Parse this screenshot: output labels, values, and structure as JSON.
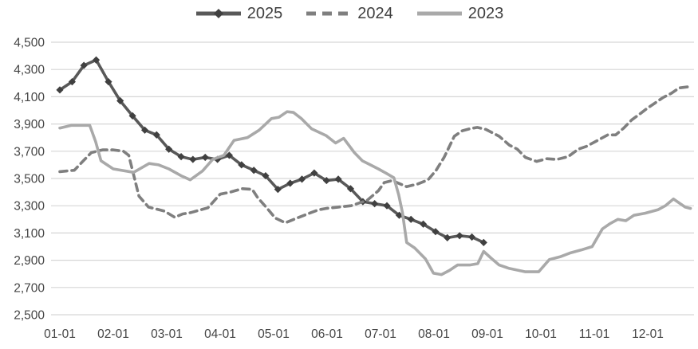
{
  "chart_data": {
    "type": "line",
    "title": "",
    "grid": true,
    "legend": {
      "position": "top",
      "entries": [
        "2025",
        "2024",
        "2023"
      ]
    },
    "x_axis": {
      "tick_labels": [
        "01-01",
        "02-01",
        "03-01",
        "04-01",
        "05-01",
        "06-01",
        "07-01",
        "08-01",
        "09-01",
        "10-01",
        "11-01",
        "12-01"
      ]
    },
    "y_axis": {
      "min": 2500,
      "max": 4500,
      "tick_values": [
        2500,
        2700,
        2900,
        3100,
        3300,
        3500,
        3700,
        3900,
        4100,
        4300,
        4500
      ],
      "tick_labels": [
        "2,500",
        "2,700",
        "2,900",
        "3,100",
        "3,300",
        "3,500",
        "3,700",
        "3,900",
        "4,100",
        "4,300",
        "4,500"
      ]
    },
    "series": [
      {
        "name": "2025",
        "color": "#595959",
        "marker": "diamond",
        "marker_color": "#404040",
        "dash": "",
        "x_month": [
          1.0,
          1.23,
          1.45,
          1.68,
          1.91,
          2.13,
          2.36,
          2.59,
          2.81,
          3.04,
          3.27,
          3.49,
          3.72,
          3.95,
          4.17,
          4.4,
          4.63,
          4.85,
          5.08,
          5.31,
          5.53,
          5.76,
          5.99,
          6.21,
          6.44,
          6.67,
          6.89,
          7.12,
          7.35,
          7.57,
          7.8,
          8.03,
          8.25,
          8.48,
          8.71,
          8.93
        ],
        "values": [
          4150,
          4210,
          4330,
          4370,
          4210,
          4070,
          3960,
          3855,
          3820,
          3715,
          3660,
          3640,
          3655,
          3640,
          3670,
          3600,
          3560,
          3520,
          3420,
          3465,
          3495,
          3540,
          3485,
          3495,
          3425,
          3330,
          3315,
          3300,
          3230,
          3200,
          3165,
          3110,
          3065,
          3080,
          3070,
          3030
        ]
      },
      {
        "name": "2024",
        "color": "#7f7f7f",
        "marker": "none",
        "marker_color": "",
        "dash": "9 6",
        "x_month": [
          1.0,
          1.27,
          1.44,
          1.59,
          1.8,
          2.0,
          2.19,
          2.29,
          2.48,
          2.66,
          2.96,
          3.15,
          3.3,
          3.45,
          3.77,
          4.0,
          4.19,
          4.41,
          4.6,
          4.7,
          4.88,
          5.03,
          5.22,
          5.44,
          5.67,
          5.84,
          5.98,
          6.21,
          6.45,
          6.75,
          6.96,
          7.07,
          7.22,
          7.49,
          7.7,
          7.89,
          8.04,
          8.19,
          8.38,
          8.53,
          8.67,
          8.81,
          8.97,
          9.22,
          9.41,
          9.56,
          9.71,
          9.92,
          10.11,
          10.3,
          10.51,
          10.7,
          10.85,
          11.04,
          11.25,
          11.4,
          11.55,
          11.7,
          11.84,
          11.99,
          12.14,
          12.29,
          12.44,
          12.59,
          12.8
        ],
        "values": [
          3550,
          3560,
          3630,
          3690,
          3710,
          3710,
          3700,
          3670,
          3370,
          3290,
          3260,
          3215,
          3240,
          3250,
          3285,
          3385,
          3400,
          3425,
          3420,
          3360,
          3280,
          3210,
          3175,
          3210,
          3245,
          3270,
          3280,
          3290,
          3300,
          3340,
          3410,
          3470,
          3485,
          3440,
          3460,
          3490,
          3560,
          3655,
          3810,
          3850,
          3865,
          3875,
          3860,
          3810,
          3745,
          3715,
          3655,
          3625,
          3645,
          3640,
          3660,
          3715,
          3735,
          3775,
          3820,
          3820,
          3870,
          3930,
          3970,
          4015,
          4055,
          4095,
          4125,
          4165,
          4175
        ]
      },
      {
        "name": "2023",
        "color": "#a9a9a9",
        "marker": "none",
        "marker_color": "",
        "dash": "",
        "x_month": [
          1.0,
          1.22,
          1.56,
          1.67,
          1.77,
          2.0,
          2.38,
          2.67,
          2.85,
          3.04,
          3.27,
          3.44,
          3.67,
          3.86,
          4.07,
          4.26,
          4.51,
          4.73,
          4.96,
          5.1,
          5.25,
          5.37,
          5.52,
          5.71,
          5.98,
          6.16,
          6.31,
          6.51,
          6.66,
          6.81,
          6.96,
          7.1,
          7.25,
          7.34,
          7.41,
          7.49,
          7.64,
          7.84,
          7.99,
          8.14,
          8.29,
          8.44,
          8.67,
          8.82,
          8.93,
          9.07,
          9.22,
          9.41,
          9.71,
          9.96,
          10.16,
          10.36,
          10.56,
          10.75,
          10.96,
          11.15,
          11.3,
          11.44,
          11.59,
          11.74,
          11.95,
          12.19,
          12.33,
          12.48,
          12.7,
          12.8
        ],
        "values": [
          3870,
          3890,
          3890,
          3770,
          3630,
          3570,
          3545,
          3610,
          3600,
          3570,
          3520,
          3490,
          3555,
          3640,
          3670,
          3780,
          3800,
          3855,
          3940,
          3950,
          3990,
          3985,
          3940,
          3865,
          3815,
          3760,
          3795,
          3690,
          3630,
          3600,
          3570,
          3540,
          3505,
          3380,
          3250,
          3030,
          2990,
          2910,
          2805,
          2795,
          2825,
          2865,
          2865,
          2875,
          2965,
          2915,
          2865,
          2840,
          2815,
          2815,
          2905,
          2925,
          2955,
          2975,
          3000,
          3130,
          3170,
          3200,
          3190,
          3230,
          3245,
          3270,
          3300,
          3350,
          3290,
          3280
        ]
      }
    ]
  },
  "colors": {
    "background": "#ffffff",
    "gridline": "#d6d6d6",
    "axis_text": "#454545",
    "legend_text": "#3f3f3f"
  }
}
